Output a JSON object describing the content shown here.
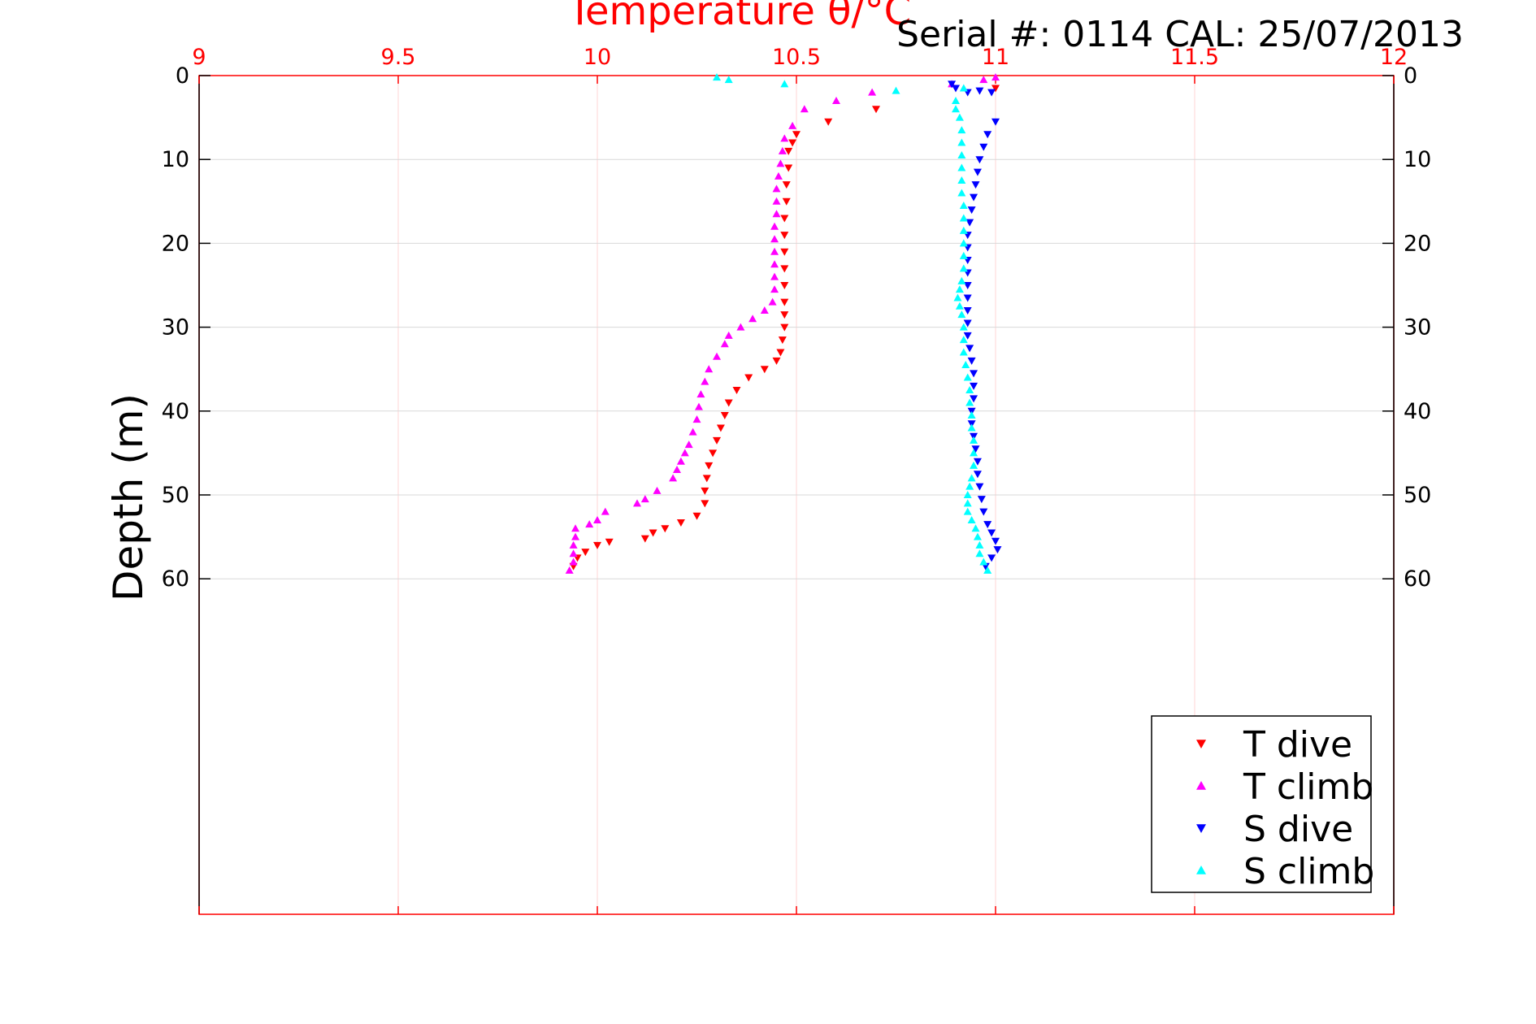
{
  "chart_data": {
    "type": "scatter",
    "title": "Temperature θ/°C",
    "annotation": "Serial #: 0114  CAL: 25/07/2013",
    "xlabel": "Temperature θ/°C",
    "ylabel": "Depth (m)",
    "xlim": [
      9,
      12
    ],
    "ylim": [
      0,
      100
    ],
    "y_reversed": true,
    "x_axis_position": "top",
    "x_ticks": [
      "9",
      "9.5",
      "10",
      "10.5",
      "11",
      "11.5",
      "12"
    ],
    "x_tick_values": [
      9,
      9.5,
      10,
      10.5,
      11,
      11.5,
      12
    ],
    "y_ticks": [
      "0",
      "10",
      "20",
      "30",
      "40",
      "50",
      "60"
    ],
    "y_tick_values": [
      0,
      10,
      20,
      30,
      40,
      50,
      60
    ],
    "grid": true,
    "legend_position": "bottom-right",
    "colors": {
      "axis": "#ff0000",
      "grid": "#d8d8d8",
      "vgrid": "#ffd6d6"
    },
    "series": [
      {
        "name": "T dive",
        "marker": "triangle-down",
        "color": "#ff0000",
        "points": [
          [
            11.0,
            1.5
          ],
          [
            10.7,
            4.0
          ],
          [
            10.58,
            5.5
          ],
          [
            10.5,
            7.0
          ],
          [
            10.49,
            8.0
          ],
          [
            10.48,
            9.0
          ],
          [
            10.48,
            11
          ],
          [
            10.475,
            13
          ],
          [
            10.475,
            15
          ],
          [
            10.47,
            17
          ],
          [
            10.47,
            19
          ],
          [
            10.47,
            21
          ],
          [
            10.47,
            23
          ],
          [
            10.47,
            25
          ],
          [
            10.47,
            27
          ],
          [
            10.47,
            28.5
          ],
          [
            10.47,
            30
          ],
          [
            10.465,
            31.5
          ],
          [
            10.46,
            33
          ],
          [
            10.45,
            34
          ],
          [
            10.42,
            35
          ],
          [
            10.38,
            36
          ],
          [
            10.35,
            37.5
          ],
          [
            10.33,
            39
          ],
          [
            10.32,
            40.5
          ],
          [
            10.31,
            42
          ],
          [
            10.3,
            43.5
          ],
          [
            10.29,
            45
          ],
          [
            10.28,
            46.5
          ],
          [
            10.275,
            48
          ],
          [
            10.27,
            49.5
          ],
          [
            10.27,
            51
          ],
          [
            10.25,
            52.5
          ],
          [
            10.21,
            53.3
          ],
          [
            10.17,
            54.0
          ],
          [
            10.14,
            54.5
          ],
          [
            10.12,
            55.2
          ],
          [
            10.03,
            55.6
          ],
          [
            10.0,
            56.0
          ],
          [
            9.97,
            56.8
          ],
          [
            9.95,
            57.5
          ],
          [
            9.94,
            58.5
          ]
        ]
      },
      {
        "name": "T climb",
        "marker": "triangle-up",
        "color": "#ff00ff",
        "points": [
          [
            9.93,
            59.0
          ],
          [
            9.94,
            58.0
          ],
          [
            9.94,
            57.0
          ],
          [
            9.94,
            56.0
          ],
          [
            9.945,
            55.0
          ],
          [
            9.945,
            54.0
          ],
          [
            9.98,
            53.5
          ],
          [
            10.0,
            53.0
          ],
          [
            10.02,
            52.0
          ],
          [
            10.1,
            51.0
          ],
          [
            10.12,
            50.5
          ],
          [
            10.15,
            49.5
          ],
          [
            10.19,
            48.0
          ],
          [
            10.2,
            47.0
          ],
          [
            10.21,
            46.0
          ],
          [
            10.22,
            45.0
          ],
          [
            10.23,
            44.0
          ],
          [
            10.24,
            42.5
          ],
          [
            10.25,
            41.0
          ],
          [
            10.255,
            39.5
          ],
          [
            10.26,
            38.0
          ],
          [
            10.27,
            36.5
          ],
          [
            10.28,
            35.0
          ],
          [
            10.3,
            33.5
          ],
          [
            10.32,
            32.0
          ],
          [
            10.33,
            31.0
          ],
          [
            10.36,
            30.0
          ],
          [
            10.39,
            29.0
          ],
          [
            10.42,
            28.0
          ],
          [
            10.44,
            27.0
          ],
          [
            10.445,
            25.5
          ],
          [
            10.445,
            24.0
          ],
          [
            10.445,
            22.5
          ],
          [
            10.445,
            21.0
          ],
          [
            10.445,
            19.5
          ],
          [
            10.445,
            18.0
          ],
          [
            10.45,
            16.5
          ],
          [
            10.45,
            15.0
          ],
          [
            10.45,
            13.5
          ],
          [
            10.455,
            12.0
          ],
          [
            10.46,
            10.5
          ],
          [
            10.465,
            9.0
          ],
          [
            10.47,
            7.5
          ],
          [
            10.49,
            6.0
          ],
          [
            10.52,
            4.0
          ],
          [
            10.6,
            3.0
          ],
          [
            10.69,
            2.0
          ],
          [
            10.89,
            1.0
          ],
          [
            10.97,
            0.5
          ],
          [
            11.0,
            0.2
          ]
        ]
      },
      {
        "name": "S dive",
        "marker": "triangle-down",
        "color": "#0000ff",
        "points": [
          [
            10.89,
            1.0
          ],
          [
            10.9,
            1.5
          ],
          [
            10.93,
            2.0
          ],
          [
            10.96,
            1.8
          ],
          [
            10.99,
            2.0
          ],
          [
            11.0,
            5.5
          ],
          [
            10.98,
            7.0
          ],
          [
            10.97,
            8.5
          ],
          [
            10.96,
            10.0
          ],
          [
            10.955,
            11.5
          ],
          [
            10.95,
            13.0
          ],
          [
            10.945,
            14.5
          ],
          [
            10.94,
            16.0
          ],
          [
            10.935,
            17.5
          ],
          [
            10.93,
            19.0
          ],
          [
            10.93,
            20.5
          ],
          [
            10.93,
            22.0
          ],
          [
            10.93,
            23.5
          ],
          [
            10.93,
            25.0
          ],
          [
            10.93,
            26.5
          ],
          [
            10.93,
            28.0
          ],
          [
            10.93,
            29.5
          ],
          [
            10.93,
            31.0
          ],
          [
            10.935,
            32.5
          ],
          [
            10.94,
            34.0
          ],
          [
            10.945,
            35.5
          ],
          [
            10.945,
            37.0
          ],
          [
            10.945,
            38.5
          ],
          [
            10.94,
            40.0
          ],
          [
            10.94,
            41.5
          ],
          [
            10.945,
            43.0
          ],
          [
            10.95,
            44.5
          ],
          [
            10.955,
            46.0
          ],
          [
            10.955,
            47.5
          ],
          [
            10.96,
            49.0
          ],
          [
            10.965,
            50.5
          ],
          [
            10.97,
            52.0
          ],
          [
            10.98,
            53.5
          ],
          [
            10.99,
            54.5
          ],
          [
            11.0,
            55.5
          ],
          [
            11.005,
            56.5
          ],
          [
            10.99,
            57.5
          ],
          [
            10.975,
            58.5
          ]
        ]
      },
      {
        "name": "S climb",
        "marker": "triangle-up",
        "color": "#00ffff",
        "points": [
          [
            10.98,
            59.0
          ],
          [
            10.97,
            58.0
          ],
          [
            10.96,
            57.0
          ],
          [
            10.96,
            56.0
          ],
          [
            10.955,
            55.0
          ],
          [
            10.95,
            54.0
          ],
          [
            10.94,
            53.0
          ],
          [
            10.93,
            52.0
          ],
          [
            10.93,
            51.0
          ],
          [
            10.93,
            50.0
          ],
          [
            10.935,
            49.0
          ],
          [
            10.94,
            48.0
          ],
          [
            10.945,
            46.5
          ],
          [
            10.945,
            45.0
          ],
          [
            10.945,
            43.5
          ],
          [
            10.94,
            42.0
          ],
          [
            10.94,
            40.5
          ],
          [
            10.935,
            39.0
          ],
          [
            10.935,
            37.5
          ],
          [
            10.93,
            36.0
          ],
          [
            10.925,
            34.5
          ],
          [
            10.92,
            33.0
          ],
          [
            10.92,
            31.5
          ],
          [
            10.92,
            30.0
          ],
          [
            10.915,
            28.5
          ],
          [
            10.91,
            27.5
          ],
          [
            10.905,
            26.5
          ],
          [
            10.91,
            25.5
          ],
          [
            10.915,
            24.5
          ],
          [
            10.92,
            23.0
          ],
          [
            10.92,
            21.5
          ],
          [
            10.92,
            20.0
          ],
          [
            10.92,
            18.5
          ],
          [
            10.92,
            17.0
          ],
          [
            10.92,
            15.5
          ],
          [
            10.915,
            14.0
          ],
          [
            10.915,
            12.5
          ],
          [
            10.915,
            11.0
          ],
          [
            10.915,
            9.5
          ],
          [
            10.915,
            8.0
          ],
          [
            10.915,
            6.5
          ],
          [
            10.91,
            5.0
          ],
          [
            10.9,
            4.0
          ],
          [
            10.9,
            3.0
          ],
          [
            10.92,
            1.5
          ],
          [
            10.75,
            1.8
          ],
          [
            10.47,
            1.0
          ],
          [
            10.33,
            0.5
          ],
          [
            10.3,
            0.2
          ]
        ]
      }
    ]
  }
}
